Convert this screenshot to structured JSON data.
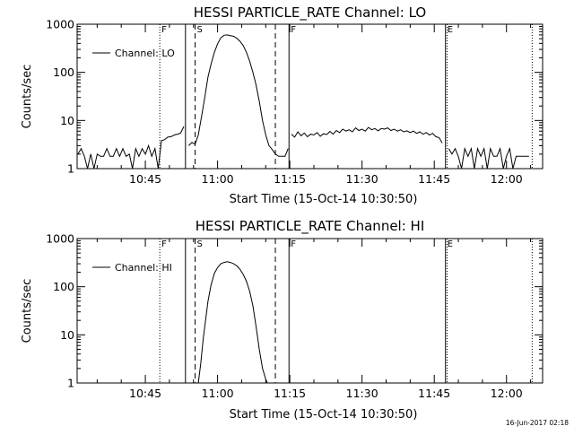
{
  "footer_timestamp": "16-Jun-2017 02:18",
  "chart_data": [
    {
      "type": "line",
      "title": "HESSI PARTICLE_RATE Channel: LO",
      "xlabel": "Start Time (15-Oct-14 10:30:50)",
      "ylabel": "Counts/sec",
      "yscale": "log",
      "ylim": [
        1,
        1000
      ],
      "xlim": [
        "10:30:50",
        "12:07:30"
      ],
      "x_ticks": [
        "10:45",
        "11:00",
        "11:15",
        "11:30",
        "11:45",
        "12:00"
      ],
      "y_ticks": [
        "1",
        "10",
        "100",
        "1000"
      ],
      "legend": {
        "label": "Channel: LO",
        "position": "upper-left"
      },
      "markers": [
        {
          "time": "10:48:00",
          "style": "dotted",
          "label": "F"
        },
        {
          "time": "10:53:20",
          "style": "solid",
          "label": ""
        },
        {
          "time": "10:55:20",
          "style": "dashed",
          "label": "S"
        },
        {
          "time": "11:12:00",
          "style": "dashed",
          "label": ""
        },
        {
          "time": "11:14:50",
          "style": "solid",
          "label": "F"
        },
        {
          "time": "11:47:20",
          "style": "solid",
          "label": "E"
        },
        {
          "time": "11:47:40",
          "style": "dotted",
          "label": ""
        },
        {
          "time": "12:05:20",
          "style": "dotted",
          "label": ""
        }
      ],
      "series": [
        {
          "name": "Channel: LO",
          "segments": [
            {
              "x": [
                "10:31:00",
                "10:31:40",
                "10:32:20",
                "10:33:00",
                "10:33:40",
                "10:34:20",
                "10:35:00",
                "10:35:40",
                "10:36:20",
                "10:37:00",
                "10:37:40",
                "10:38:20",
                "10:39:00",
                "10:39:40",
                "10:40:20",
                "10:41:00",
                "10:41:40",
                "10:42:20",
                "10:43:00",
                "10:43:40",
                "10:44:20",
                "10:45:00",
                "10:45:40",
                "10:46:20",
                "10:47:00",
                "10:47:40",
                "10:48:20",
                "10:49:00",
                "10:49:40",
                "10:50:20",
                "10:51:00",
                "10:51:40",
                "10:52:20",
                "10:53:00"
              ],
              "y": [
                2,
                2.6,
                1.8,
                1,
                2,
                1,
                2,
                1.8,
                1.8,
                2.6,
                1.8,
                1.8,
                2.6,
                1.8,
                2.6,
                1.8,
                2,
                1,
                2.6,
                1.8,
                2.6,
                2,
                3,
                1.8,
                2.6,
                1,
                3.8,
                4,
                4.5,
                4.6,
                5,
                5.2,
                5.5,
                7.5
              ]
            },
            {
              "x": [
                "10:54:00",
                "10:54:40",
                "10:55:20",
                "10:56:00",
                "10:56:40",
                "10:57:20",
                "10:58:00",
                "10:58:40",
                "10:59:20",
                "11:00:00",
                "11:00:40",
                "11:01:20",
                "11:02:00",
                "11:02:40",
                "11:03:20",
                "11:04:00",
                "11:04:40",
                "11:05:20",
                "11:06:00",
                "11:06:40",
                "11:07:20",
                "11:08:00",
                "11:08:40",
                "11:09:20",
                "11:10:00",
                "11:10:40",
                "11:11:20",
                "11:12:00",
                "11:12:40",
                "11:13:20",
                "11:14:00",
                "11:14:40"
              ],
              "y": [
                3,
                3.5,
                3.2,
                5,
                12,
                30,
                80,
                150,
                260,
                390,
                520,
                590,
                600,
                580,
                560,
                510,
                440,
                360,
                260,
                170,
                100,
                55,
                25,
                10,
                5,
                3,
                2.5,
                2,
                1.8,
                1.8,
                1.8,
                2.6
              ]
            },
            {
              "x": [
                "11:15:20",
                "11:16:00",
                "11:16:40",
                "11:17:20",
                "11:18:00",
                "11:18:40",
                "11:19:20",
                "11:20:00",
                "11:20:40",
                "11:21:20",
                "11:22:00",
                "11:22:40",
                "11:23:20",
                "11:24:00",
                "11:24:40",
                "11:25:20",
                "11:26:00",
                "11:26:40",
                "11:27:20",
                "11:28:00",
                "11:28:40",
                "11:29:20",
                "11:30:00",
                "11:30:40",
                "11:31:20",
                "11:32:00",
                "11:32:40",
                "11:33:20",
                "11:34:00",
                "11:34:40",
                "11:35:20",
                "11:36:00",
                "11:36:40",
                "11:37:20",
                "11:38:00",
                "11:38:40",
                "11:39:20",
                "11:40:00",
                "11:40:40",
                "11:41:20",
                "11:42:00",
                "11:42:40",
                "11:43:20",
                "11:44:00",
                "11:44:40",
                "11:45:20",
                "11:46:00",
                "11:46:40"
              ],
              "y": [
                5.2,
                4.5,
                5.8,
                4.8,
                5.5,
                4.6,
                5.2,
                5,
                5.6,
                4.7,
                5.3,
                5.1,
                5.9,
                5.2,
                6.2,
                5.6,
                6.6,
                6,
                6.4,
                5.8,
                7,
                6.2,
                6.6,
                6,
                7.2,
                6.4,
                6.8,
                6.1,
                6.8,
                6.6,
                7,
                6.2,
                6.6,
                6,
                6.4,
                5.8,
                6.1,
                5.6,
                6,
                5.4,
                5.8,
                5.2,
                5.6,
                5,
                5.4,
                4.6,
                4.4,
                3.4
              ]
            },
            {
              "x": [
                "11:48:00",
                "11:48:40",
                "11:49:20",
                "11:50:00",
                "11:50:40",
                "11:51:20",
                "11:52:00",
                "11:52:40",
                "11:53:20",
                "11:54:00",
                "11:54:40",
                "11:55:20",
                "11:56:00",
                "11:56:40",
                "11:57:20",
                "11:58:00",
                "11:58:40",
                "11:59:20",
                "12:00:00",
                "12:00:40",
                "12:01:20",
                "12:02:00",
                "12:02:40",
                "12:03:20",
                "12:04:00",
                "12:04:40"
              ],
              "y": [
                2.6,
                2,
                2.6,
                1.8,
                1,
                2.6,
                1.8,
                2.6,
                1,
                2.6,
                1.8,
                2.6,
                1,
                2.6,
                1.8,
                1.8,
                2.6,
                1,
                1.8,
                2.6,
                1,
                1.8,
                1.8,
                1.8,
                1.8,
                1.8
              ]
            }
          ]
        }
      ]
    },
    {
      "type": "line",
      "title": "HESSI PARTICLE_RATE Channel: HI",
      "xlabel": "Start Time (15-Oct-14 10:30:50)",
      "ylabel": "Counts/sec",
      "yscale": "log",
      "ylim": [
        1,
        1000
      ],
      "xlim": [
        "10:30:50",
        "12:07:30"
      ],
      "x_ticks": [
        "10:45",
        "11:00",
        "11:15",
        "11:30",
        "11:45",
        "12:00"
      ],
      "y_ticks": [
        "1",
        "10",
        "100",
        "1000"
      ],
      "legend": {
        "label": "Channel: HI",
        "position": "upper-left"
      },
      "markers": [
        {
          "time": "10:48:00",
          "style": "dotted",
          "label": "F"
        },
        {
          "time": "10:53:20",
          "style": "solid",
          "label": ""
        },
        {
          "time": "10:55:20",
          "style": "dashed",
          "label": "S"
        },
        {
          "time": "11:12:00",
          "style": "dashed",
          "label": ""
        },
        {
          "time": "11:14:50",
          "style": "solid",
          "label": "F"
        },
        {
          "time": "11:47:20",
          "style": "solid",
          "label": "E"
        },
        {
          "time": "11:47:40",
          "style": "dotted",
          "label": ""
        },
        {
          "time": "12:05:20",
          "style": "dotted",
          "label": ""
        }
      ],
      "series": [
        {
          "name": "Channel: HI",
          "segments": [
            {
              "x": [
                "10:56:00",
                "10:56:30",
                "10:57:00",
                "10:57:30",
                "10:58:00",
                "10:58:40",
                "10:59:20",
                "11:00:00",
                "11:00:40",
                "11:01:20",
                "11:02:00",
                "11:02:40",
                "11:03:20",
                "11:04:00",
                "11:04:40",
                "11:05:20",
                "11:06:00",
                "11:06:40",
                "11:07:20",
                "11:08:00",
                "11:08:40",
                "11:09:20",
                "11:10:00",
                "11:10:20"
              ],
              "y": [
                1,
                2.5,
                8,
                20,
                50,
                110,
                190,
                250,
                300,
                320,
                330,
                320,
                300,
                270,
                230,
                180,
                130,
                80,
                40,
                15,
                5,
                2,
                1.2,
                1
              ]
            }
          ]
        }
      ]
    }
  ]
}
